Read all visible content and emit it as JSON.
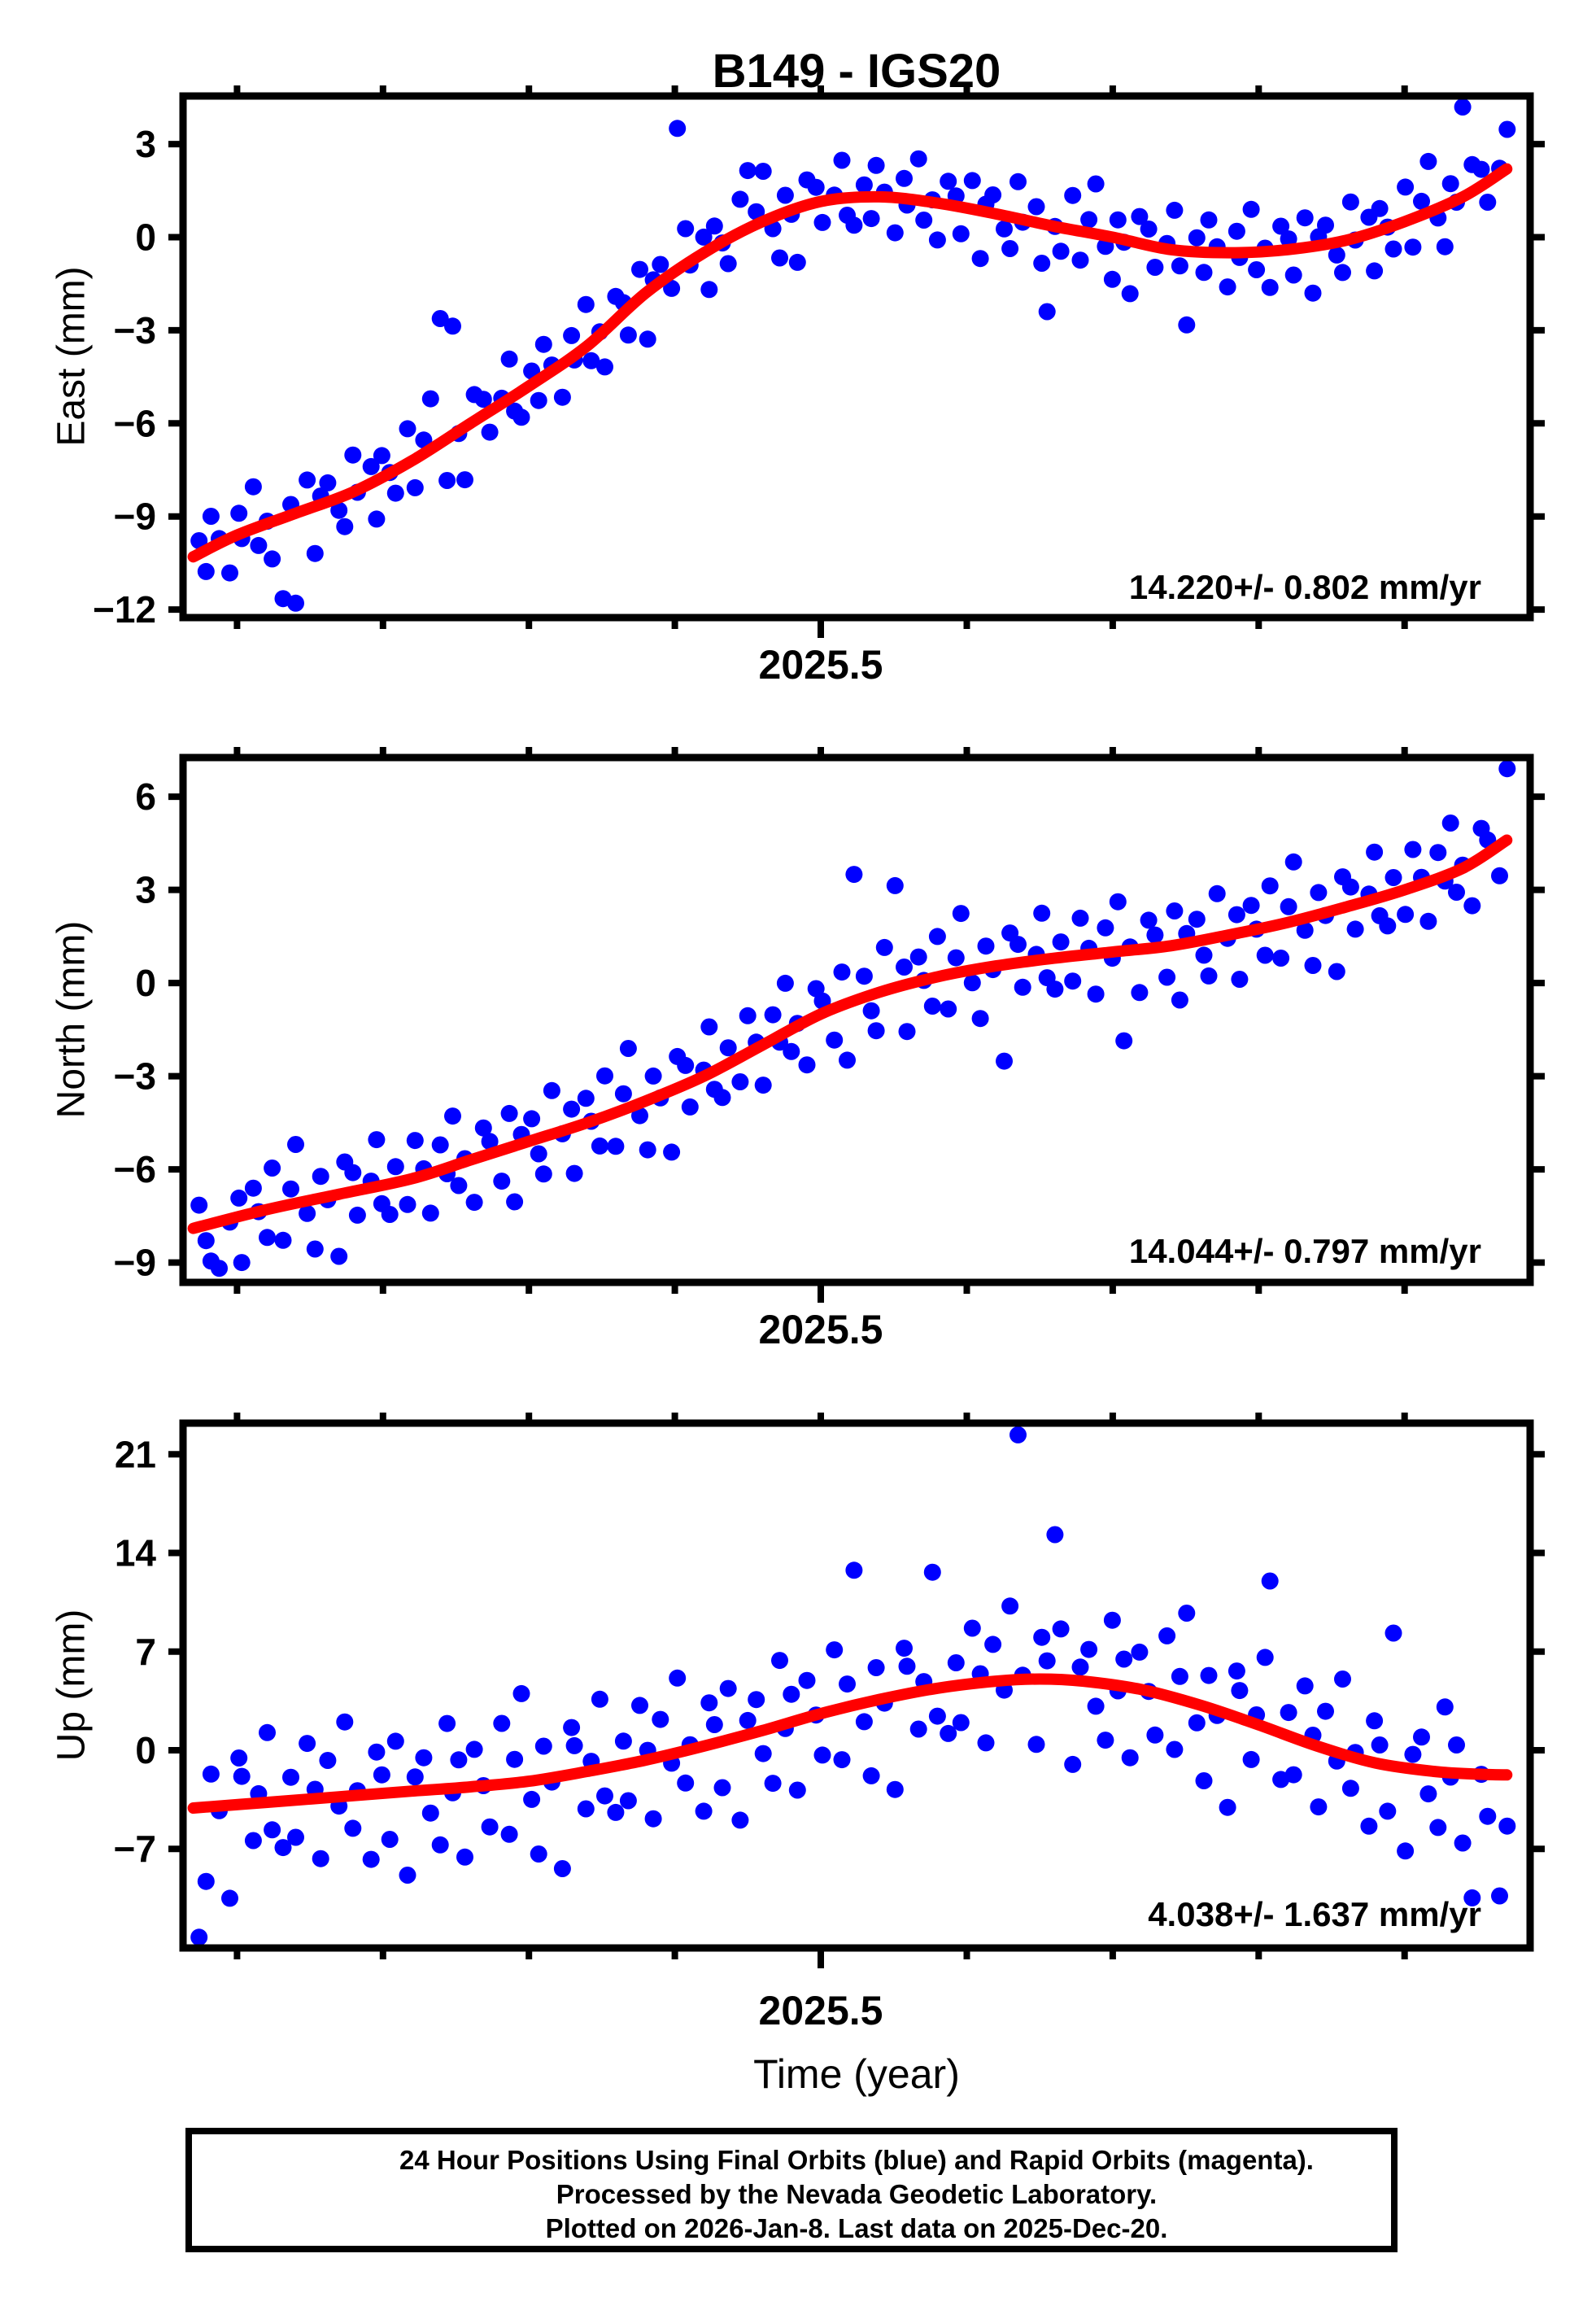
{
  "title": "B149 - IGS20",
  "colors": {
    "points": "#0000ff",
    "trend": "#ff0000",
    "frame": "#000000"
  },
  "time_axis": {
    "label": "Time (year)",
    "major_tick_label": "2025.5",
    "major_tick_value": 2025.5,
    "ticks": [
      2025.1,
      2025.2,
      2025.3,
      2025.4,
      2025.5,
      2025.6,
      2025.7,
      2025.8,
      2025.9
    ],
    "range": [
      2025.063,
      2025.986
    ]
  },
  "footer": {
    "line1": "24 Hour Positions Using Final Orbits (blue) and Rapid Orbits (magenta).",
    "line2": "Processed by the Nevada Geodetic Laboratory.",
    "line3": "Plotted on 2026-Jan-8. Last data on 2025-Dec-20."
  },
  "chart_data": {
    "type": "scatter",
    "x_unit": "decimal year",
    "noise_cycle": [
      0.5,
      -0.8,
      1.2,
      0.2,
      -1.3,
      0.8,
      -0.2,
      1.6,
      -0.7,
      0.1,
      -1.4,
      0.9,
      0.4,
      -1.0,
      1.1,
      -1.8,
      0.3,
      0.7,
      -0.5,
      -1.2,
      1.4,
      -0.1,
      0.6,
      -1.5,
      0.8,
      0.0,
      -0.9,
      1.3,
      -1.1,
      0.5,
      1.9,
      -0.4,
      -1.6,
      0.7,
      -0.1,
      -2.0,
      1.0,
      0.6,
      -0.8,
      0.2,
      1.5,
      -0.6,
      -1.0
    ],
    "scatter_common": {
      "t_start": 2025.073,
      "t_step": 0.0053,
      "count": 170,
      "x_jitter": 0.0012
    },
    "panels": [
      {
        "id": "east",
        "ylabel": "East (mm)",
        "rate_label": "14.220+/- 0.802 mm/yr",
        "rate_mm_per_yr": 14.22,
        "rate_sigma": 0.802,
        "ylim": [
          -12.26,
          4.55
        ],
        "yticks": [
          3,
          0,
          -3,
          -6,
          -9,
          -12
        ],
        "ytick_labels": [
          "3",
          "0",
          "−3",
          "−6",
          "−9",
          "−12"
        ],
        "trend": [
          [
            2025.07,
            -10.3
          ],
          [
            2025.1,
            -9.6
          ],
          [
            2025.14,
            -8.9
          ],
          [
            2025.18,
            -8.2
          ],
          [
            2025.22,
            -7.2
          ],
          [
            2025.26,
            -6.0
          ],
          [
            2025.3,
            -4.8
          ],
          [
            2025.34,
            -3.5
          ],
          [
            2025.38,
            -1.8
          ],
          [
            2025.42,
            -0.5
          ],
          [
            2025.46,
            0.5
          ],
          [
            2025.5,
            1.15
          ],
          [
            2025.54,
            1.3
          ],
          [
            2025.58,
            1.1
          ],
          [
            2025.62,
            0.75
          ],
          [
            2025.66,
            0.35
          ],
          [
            2025.7,
            0.0
          ],
          [
            2025.74,
            -0.4
          ],
          [
            2025.78,
            -0.5
          ],
          [
            2025.82,
            -0.4
          ],
          [
            2025.86,
            -0.1
          ],
          [
            2025.9,
            0.5
          ],
          [
            2025.94,
            1.3
          ],
          [
            2025.97,
            2.2
          ]
        ],
        "noise_scale": 0.85,
        "noise_phase": 0,
        "outliers": {
          "11": -2.6,
          "13": -2.9,
          "31": 4.0,
          "33": 3.5,
          "62": 4.6,
          "71": 1.9,
          "110": -2.8,
          "128": -2.4,
          "164": 2.9
        }
      },
      {
        "id": "north",
        "ylabel": "North (mm)",
        "rate_label": "14.044+/- 0.797 mm/yr",
        "rate_mm_per_yr": 14.044,
        "rate_sigma": 0.797,
        "ylim": [
          -9.64,
          7.26
        ],
        "yticks": [
          6,
          3,
          0,
          -3,
          -6,
          -9
        ],
        "ytick_labels": [
          "6",
          "3",
          "0",
          "−3",
          "−6",
          "−9"
        ],
        "trend": [
          [
            2025.07,
            -7.9
          ],
          [
            2025.12,
            -7.3
          ],
          [
            2025.17,
            -6.8
          ],
          [
            2025.22,
            -6.3
          ],
          [
            2025.26,
            -5.7
          ],
          [
            2025.3,
            -5.1
          ],
          [
            2025.34,
            -4.5
          ],
          [
            2025.38,
            -3.8
          ],
          [
            2025.42,
            -3.0
          ],
          [
            2025.46,
            -2.0
          ],
          [
            2025.5,
            -1.0
          ],
          [
            2025.54,
            -0.3
          ],
          [
            2025.58,
            0.2
          ],
          [
            2025.62,
            0.55
          ],
          [
            2025.66,
            0.8
          ],
          [
            2025.7,
            1.0
          ],
          [
            2025.74,
            1.2
          ],
          [
            2025.78,
            1.55
          ],
          [
            2025.82,
            1.95
          ],
          [
            2025.86,
            2.45
          ],
          [
            2025.9,
            3.0
          ],
          [
            2025.94,
            3.7
          ],
          [
            2025.97,
            4.6
          ]
        ],
        "noise_scale": 1.0,
        "noise_phase": 17,
        "outliers": {
          "3": -1.5,
          "85": 4.1,
          "90": 3.3,
          "104": -3.1,
          "120": -2.9,
          "169": 2.3
        }
      },
      {
        "id": "up",
        "ylabel": "Up (mm)",
        "rate_label": "4.038+/- 1.637 mm/yr",
        "rate_mm_per_yr": 4.038,
        "rate_sigma": 1.637,
        "ylim": [
          -14.03,
          23.21
        ],
        "yticks": [
          21,
          14,
          7,
          0,
          -7
        ],
        "ytick_labels": [
          "21",
          "14",
          "7",
          "0",
          "−7"
        ],
        "trend": [
          [
            2025.07,
            -4.1
          ],
          [
            2025.12,
            -3.7
          ],
          [
            2025.17,
            -3.3
          ],
          [
            2025.22,
            -2.9
          ],
          [
            2025.26,
            -2.6
          ],
          [
            2025.3,
            -2.2
          ],
          [
            2025.34,
            -1.5
          ],
          [
            2025.38,
            -0.7
          ],
          [
            2025.42,
            0.3
          ],
          [
            2025.46,
            1.4
          ],
          [
            2025.5,
            2.6
          ],
          [
            2025.54,
            3.6
          ],
          [
            2025.58,
            4.4
          ],
          [
            2025.62,
            4.9
          ],
          [
            2025.65,
            5.05
          ],
          [
            2025.68,
            4.9
          ],
          [
            2025.72,
            4.3
          ],
          [
            2025.76,
            3.2
          ],
          [
            2025.8,
            1.8
          ],
          [
            2025.84,
            0.3
          ],
          [
            2025.88,
            -0.9
          ],
          [
            2025.92,
            -1.5
          ],
          [
            2025.95,
            -1.7
          ],
          [
            2025.97,
            -1.75
          ]
        ],
        "noise_scale": 3.3,
        "noise_phase": 31,
        "outliers": {
          "0": -9.2,
          "85": 9.6,
          "95": 8.3,
          "106": 17.4,
          "111": 10.3,
          "139": 10.5,
          "155": 9.4,
          "165": -8.8,
          "168": -8.6
        }
      }
    ]
  }
}
